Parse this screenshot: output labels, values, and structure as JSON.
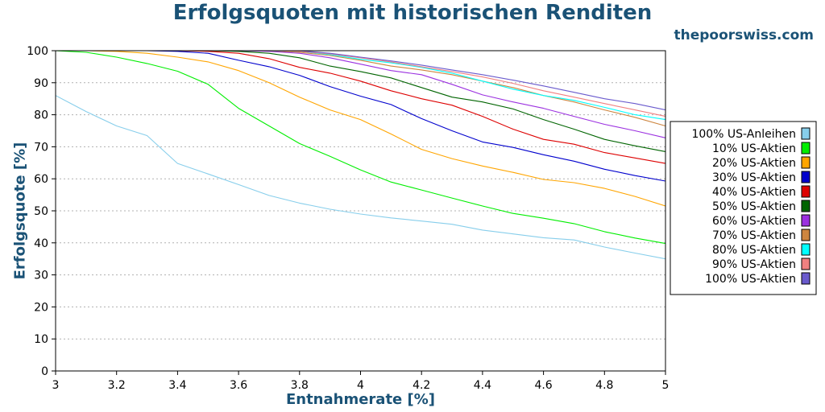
{
  "title": "Erfolgsquoten mit historischen Renditen",
  "watermark": "thepoorswiss.com",
  "chart_data": {
    "type": "line",
    "title": "Erfolgsquoten mit historischen Renditen",
    "xlabel": "Entnahmerate [%]",
    "ylabel": "Erfolgsquote [%]",
    "xlim": [
      3,
      5
    ],
    "ylim": [
      0,
      100
    ],
    "xticks": [
      "3",
      "3.2",
      "3.4",
      "3.6",
      "3.8",
      "4",
      "4.2",
      "4.4",
      "4.6",
      "4.8",
      "5"
    ],
    "yticks": [
      "0",
      "10",
      "20",
      "30",
      "40",
      "50",
      "60",
      "70",
      "80",
      "90",
      "100"
    ],
    "grid": "horizontal dotted",
    "legend_position": "right",
    "x": [
      3.0,
      3.1,
      3.2,
      3.3,
      3.4,
      3.5,
      3.6,
      3.7,
      3.8,
      3.9,
      4.0,
      4.1,
      4.2,
      4.3,
      4.4,
      4.5,
      4.6,
      4.7,
      4.8,
      4.9,
      5.0
    ],
    "series": [
      {
        "name": "100% US-Anleihen",
        "color": "#87ceeb",
        "values": [
          86,
          81,
          76.5,
          73.5,
          64.8,
          61.5,
          58.2,
          54.8,
          52.4,
          50.5,
          49,
          47.8,
          46.8,
          45.8,
          44,
          42.8,
          41.6,
          40.9,
          38.7,
          36.8,
          35
        ]
      },
      {
        "name": "10% US-Aktien",
        "color": "#00ee00",
        "values": [
          100,
          99.5,
          98,
          96,
          93.6,
          89.5,
          82,
          76.5,
          71,
          67,
          62.8,
          59,
          56.5,
          54,
          51.5,
          49.2,
          47.7,
          46,
          43.5,
          41.5,
          39.8
        ]
      },
      {
        "name": "20% US-Aktien",
        "color": "#ffa500",
        "values": [
          100,
          100,
          99.8,
          99.2,
          98,
          96.5,
          93.8,
          90,
          85.5,
          81.5,
          78.5,
          74,
          69.2,
          66.3,
          64,
          62,
          59.8,
          58.8,
          57,
          54.5,
          51.5
        ]
      },
      {
        "name": "30% US-Aktien",
        "color": "#0000cd",
        "values": [
          100,
          100,
          100,
          100,
          99.8,
          99.2,
          97,
          95,
          92.3,
          88.8,
          85.8,
          83.2,
          78.8,
          75,
          71.5,
          69.8,
          67.5,
          65.5,
          63,
          61,
          59.3
        ]
      },
      {
        "name": "40% US-Aktien",
        "color": "#dd0000",
        "values": [
          100,
          100,
          100,
          100,
          100,
          99.8,
          99.2,
          97.5,
          94.8,
          93,
          90.5,
          87.5,
          85,
          83,
          79.5,
          75.5,
          72.3,
          70.8,
          68.2,
          66.5,
          64.8
        ]
      },
      {
        "name": "50% US-Aktien",
        "color": "#006400",
        "values": [
          100,
          100,
          100,
          100,
          100,
          100,
          99.8,
          99.2,
          97.8,
          95.2,
          93.5,
          91.5,
          88.5,
          85.5,
          84,
          81.8,
          78.5,
          75.5,
          72.3,
          70.3,
          68.5
        ]
      },
      {
        "name": "60% US-Aktien",
        "color": "#9b30e0",
        "values": [
          100,
          100,
          100,
          100,
          100,
          100,
          100,
          99.8,
          99.2,
          97.8,
          95.8,
          93.8,
          92.5,
          89.5,
          86.2,
          84,
          82,
          79.5,
          77,
          75,
          72.8
        ]
      },
      {
        "name": "70% US-Aktien",
        "color": "#cd853f",
        "values": [
          100,
          100,
          100,
          100,
          100,
          100,
          100,
          100,
          99.5,
          98.5,
          97,
          95.2,
          94,
          92.5,
          90.5,
          88.5,
          86,
          84,
          81.5,
          79.2,
          76.5
        ]
      },
      {
        "name": "80% US-Aktien",
        "color": "#00ffff",
        "values": [
          100,
          100,
          100,
          100,
          100,
          100,
          100,
          100,
          99.8,
          98.8,
          97.3,
          96.2,
          94.8,
          93,
          90.5,
          88,
          86,
          84.5,
          82.3,
          80,
          78.5
        ]
      },
      {
        "name": "90% US-Aktien",
        "color": "#f08080",
        "values": [
          100,
          100,
          100,
          100,
          100,
          100,
          100,
          100,
          99.8,
          99,
          97.8,
          96.5,
          95,
          93.5,
          91.8,
          89.8,
          87.5,
          85.5,
          83.5,
          81.5,
          79.5
        ]
      },
      {
        "name": "100% US-Aktien",
        "color": "#6a5acd",
        "values": [
          100,
          100,
          100,
          100,
          100,
          100,
          100,
          100,
          100,
          99.2,
          98,
          96.8,
          95.5,
          94,
          92.5,
          90.8,
          89,
          87,
          85,
          83.5,
          81.5
        ]
      }
    ]
  }
}
